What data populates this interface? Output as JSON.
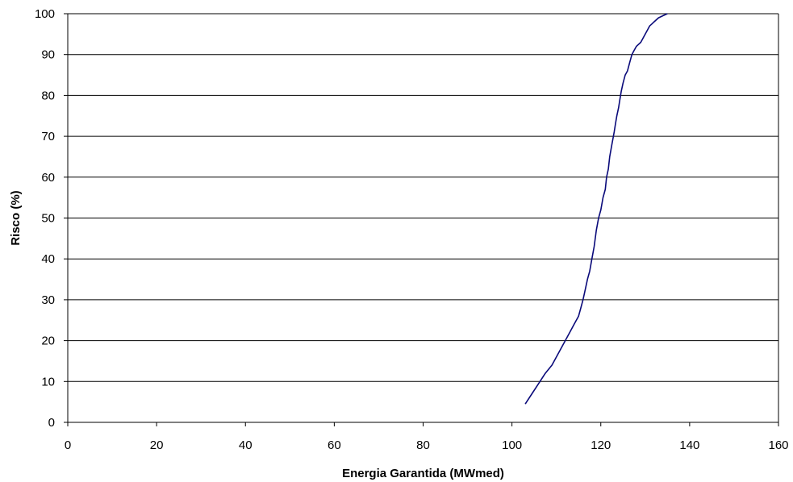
{
  "chart_data": {
    "type": "line",
    "title": "",
    "xlabel": "Energia Garantida (MWmed)",
    "ylabel": "Risco (%)",
    "xlim": [
      0,
      160
    ],
    "ylim": [
      0,
      100
    ],
    "xticks": [
      0,
      20,
      40,
      60,
      80,
      100,
      120,
      140,
      160
    ],
    "yticks": [
      0,
      10,
      20,
      30,
      40,
      50,
      60,
      70,
      80,
      90,
      100
    ],
    "grid": "horizontal",
    "legend": "none",
    "colors": {
      "line": "#0a0a7a",
      "grid": "#000000"
    },
    "series": [
      {
        "x": [
          103.0,
          104.5,
          106.0,
          107.5,
          109.0,
          110.0,
          111.0,
          112.0,
          113.0,
          114.0,
          115.0,
          115.5,
          116.0,
          116.5,
          117.0,
          117.5,
          118.0,
          118.5,
          119.0,
          119.5,
          120.0,
          120.5,
          121.0,
          121.3,
          121.7,
          122.0,
          122.5,
          123.0,
          123.3,
          123.6,
          124.0,
          124.3,
          124.6,
          125.0,
          125.5,
          126.0,
          126.5,
          127.0,
          127.5,
          128.0,
          129.0,
          129.5,
          130.0,
          130.5,
          131.0,
          131.5,
          132.0,
          133.0,
          134.0,
          135.0
        ],
        "y": [
          4.5,
          7.0,
          9.5,
          12.0,
          14.0,
          16.0,
          18.0,
          20.0,
          22.0,
          24.0,
          26.0,
          28.0,
          30.0,
          32.5,
          35.0,
          37.0,
          40.0,
          43.0,
          47.0,
          50.0,
          52.0,
          55.0,
          57.0,
          60.0,
          62.0,
          65.0,
          68.0,
          71.0,
          73.0,
          75.0,
          77.0,
          79.0,
          81.0,
          83.0,
          85.0,
          86.0,
          88.0,
          90.0,
          91.0,
          92.0,
          93.0,
          94.0,
          95.0,
          96.0,
          97.0,
          97.5,
          98.0,
          99.0,
          99.5,
          100.0
        ]
      }
    ]
  }
}
